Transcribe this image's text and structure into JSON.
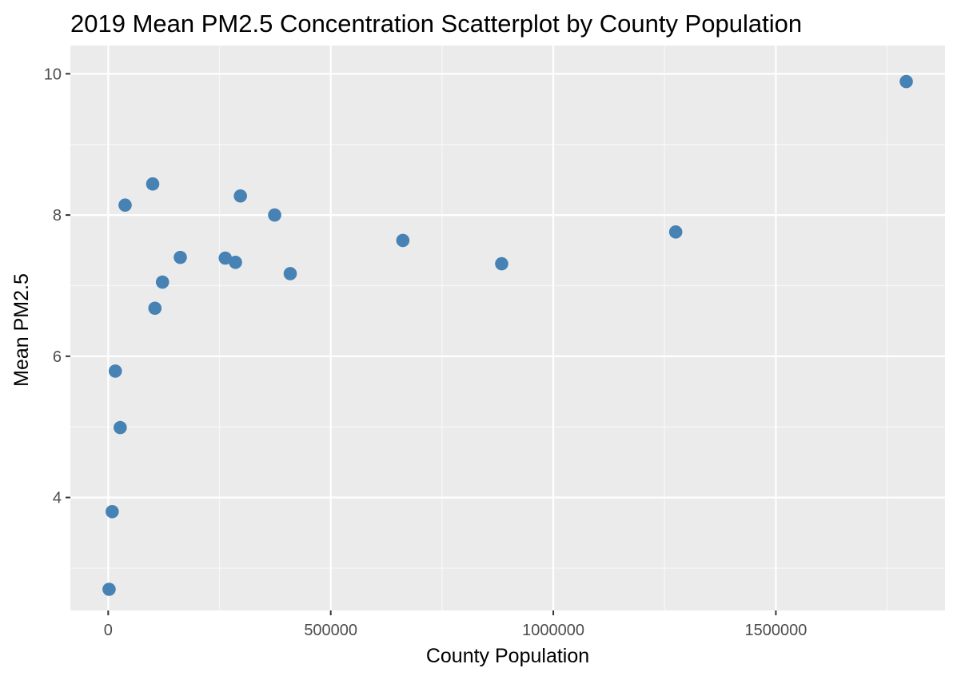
{
  "chart_data": {
    "type": "scatter",
    "title": "2019 Mean PM2.5 Concentration Scatterplot by County Population",
    "xlabel": "County Population",
    "ylabel": "Mean PM2.5",
    "xlim": [
      -85000,
      1880000
    ],
    "ylim": [
      2.4,
      10.4
    ],
    "x_ticks": [
      0,
      500000,
      1000000,
      1500000
    ],
    "x_tick_labels": [
      "0",
      "500000",
      "1000000",
      "1500000"
    ],
    "y_ticks": [
      4,
      6,
      8,
      10
    ],
    "y_tick_labels": [
      "4",
      "6",
      "8",
      "10"
    ],
    "grid": true,
    "panel_color": "#ebebeb",
    "point_color": "#4682b4",
    "points": [
      {
        "x": 2000,
        "y": 2.7
      },
      {
        "x": 9000,
        "y": 3.8
      },
      {
        "x": 16000,
        "y": 5.79
      },
      {
        "x": 27000,
        "y": 4.99
      },
      {
        "x": 38000,
        "y": 8.14
      },
      {
        "x": 100000,
        "y": 8.44
      },
      {
        "x": 105000,
        "y": 6.68
      },
      {
        "x": 122000,
        "y": 7.05
      },
      {
        "x": 162000,
        "y": 7.4
      },
      {
        "x": 263000,
        "y": 7.39
      },
      {
        "x": 286000,
        "y": 7.33
      },
      {
        "x": 297000,
        "y": 8.27
      },
      {
        "x": 374000,
        "y": 8.0
      },
      {
        "x": 409000,
        "y": 7.17
      },
      {
        "x": 662000,
        "y": 7.64
      },
      {
        "x": 884000,
        "y": 7.31
      },
      {
        "x": 1275000,
        "y": 7.76
      },
      {
        "x": 1793000,
        "y": 9.89
      }
    ]
  }
}
